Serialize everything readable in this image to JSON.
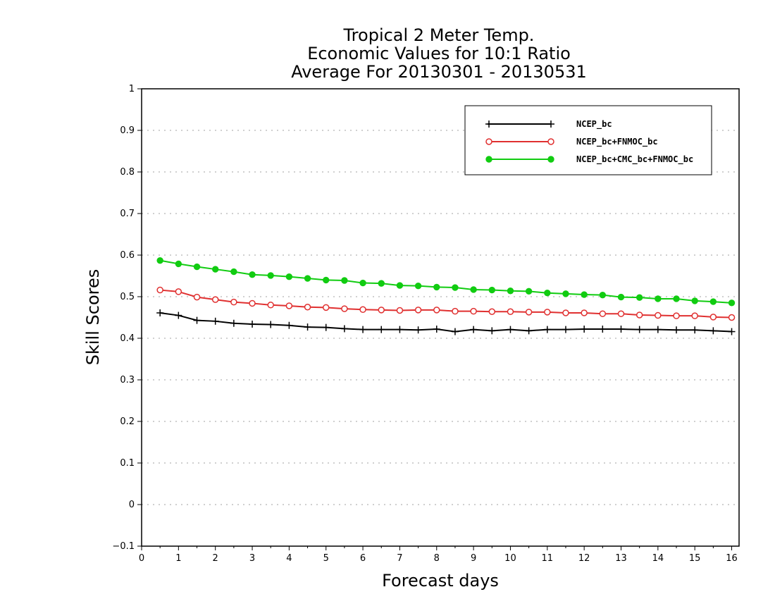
{
  "chart_data": {
    "type": "line",
    "title": [
      "Tropical 2 Meter Temp.",
      "Economic Values for 10:1 Ratio",
      "Average For 20130301 - 20130531"
    ],
    "xlabel": "Forecast days",
    "ylabel": "Skill Scores",
    "xlim": [
      0,
      16.2
    ],
    "ylim": [
      -0.1,
      1
    ],
    "x_ticks": [
      "0",
      "1",
      "2",
      "3",
      "4",
      "5",
      "6",
      "7",
      "8",
      "9",
      "10",
      "11",
      "12",
      "13",
      "14",
      "15",
      "16"
    ],
    "y_ticks": [
      "−0.1",
      "0",
      "0.1",
      "0.2",
      "0.3",
      "0.4",
      "0.5",
      "0.6",
      "0.7",
      "0.8",
      "0.9",
      "1"
    ],
    "grid": true,
    "legend_position": "top-right",
    "x": [
      0.5,
      1,
      1.5,
      2,
      2.5,
      3,
      3.5,
      4,
      4.5,
      5,
      5.5,
      6,
      6.5,
      7,
      7.5,
      8,
      8.5,
      9,
      9.5,
      10,
      10.5,
      11,
      11.5,
      12,
      12.5,
      13,
      13.5,
      14,
      14.5,
      15,
      15.5,
      16
    ],
    "series": [
      {
        "name": "NCEP_bc",
        "color": "#000000",
        "marker": "plus",
        "values": [
          0.461,
          0.455,
          0.443,
          0.441,
          0.436,
          0.434,
          0.433,
          0.431,
          0.427,
          0.426,
          0.423,
          0.421,
          0.421,
          0.421,
          0.42,
          0.422,
          0.416,
          0.421,
          0.418,
          0.421,
          0.418,
          0.421,
          0.421,
          0.422,
          0.422,
          0.422,
          0.421,
          0.421,
          0.42,
          0.42,
          0.418,
          0.416
        ]
      },
      {
        "name": "NCEP_bc+FNMOC_bc",
        "color": "#e03030",
        "marker": "open-circle",
        "values": [
          0.516,
          0.512,
          0.499,
          0.493,
          0.487,
          0.484,
          0.48,
          0.478,
          0.475,
          0.474,
          0.471,
          0.469,
          0.468,
          0.467,
          0.468,
          0.468,
          0.465,
          0.465,
          0.464,
          0.464,
          0.463,
          0.463,
          0.461,
          0.461,
          0.459,
          0.459,
          0.456,
          0.455,
          0.454,
          0.454,
          0.451,
          0.45
        ]
      },
      {
        "name": "NCEP_bc+CMC_bc+FNMOC_bc",
        "color": "#11cc11",
        "marker": "filled-circle",
        "values": [
          0.587,
          0.579,
          0.572,
          0.566,
          0.56,
          0.553,
          0.551,
          0.548,
          0.544,
          0.54,
          0.539,
          0.533,
          0.532,
          0.527,
          0.526,
          0.523,
          0.522,
          0.517,
          0.516,
          0.514,
          0.513,
          0.509,
          0.507,
          0.505,
          0.504,
          0.499,
          0.498,
          0.495,
          0.495,
          0.49,
          0.488,
          0.485
        ]
      }
    ]
  }
}
